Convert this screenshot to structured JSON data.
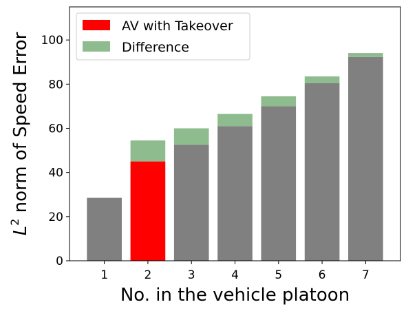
{
  "chart_data": {
    "type": "bar",
    "title": "",
    "xlabel": "No. in the vehicle platoon",
    "ylabel": {
      "base": "L",
      "superscript": "2",
      "rest": " norm of Speed Error"
    },
    "categories": [
      "1",
      "2",
      "3",
      "4",
      "5",
      "6",
      "7"
    ],
    "ylim": [
      0,
      115
    ],
    "yticks": [
      0,
      20,
      40,
      60,
      80,
      100
    ],
    "grid": false,
    "legend_position": "top-left",
    "series": [
      {
        "name": "",
        "values": [
          28.5,
          null,
          52.5,
          61,
          70,
          80.5,
          92.3
        ],
        "color": "#808080"
      },
      {
        "name": "AV with Takeover",
        "values": [
          null,
          45,
          null,
          null,
          null,
          null,
          null
        ],
        "color": "#ff0000"
      },
      {
        "name": "Difference",
        "values": [
          0,
          9.5,
          7.5,
          5.5,
          4.5,
          3,
          1.8
        ],
        "color": "#8fbc8f"
      }
    ]
  }
}
